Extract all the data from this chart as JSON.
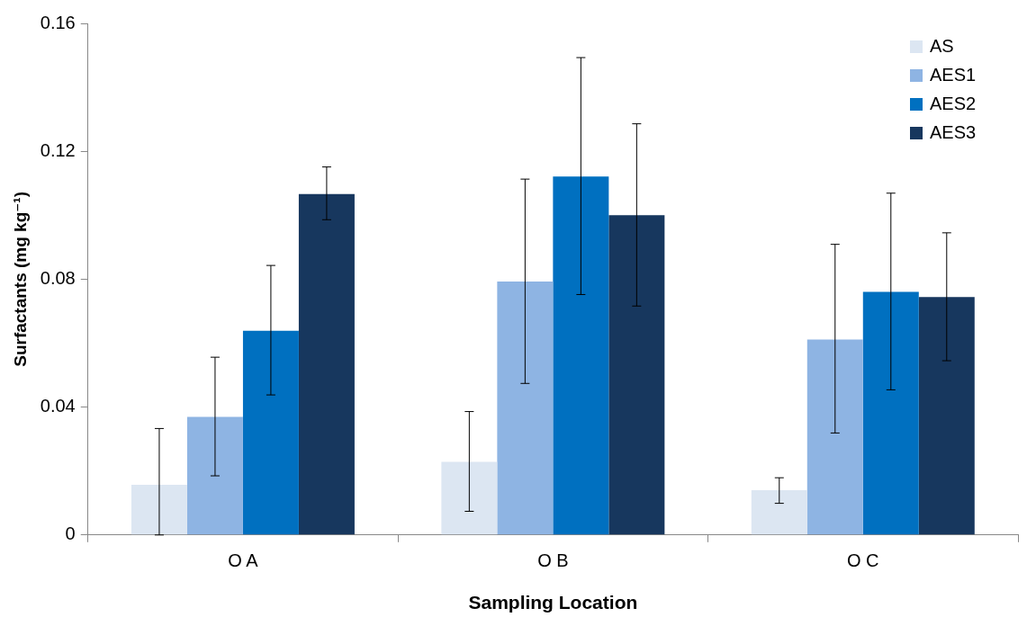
{
  "chart_data": {
    "type": "bar",
    "xlabel": "Sampling Location",
    "ylabel": "Surfactants (mg kg⁻¹)",
    "categories": [
      "O A",
      "O B",
      "O C"
    ],
    "series": [
      {
        "name": "AS",
        "color": "#dce6f2",
        "values": [
          0.0157,
          0.0229,
          0.014
        ],
        "errors": [
          [
            0,
            0.0333
          ],
          [
            0.0074,
            0.0386
          ],
          [
            0.0099,
            0.0179
          ]
        ]
      },
      {
        "name": "AES1",
        "color": "#8eb4e3",
        "values": [
          0.0369,
          0.0793,
          0.0611
        ],
        "errors": [
          [
            0.0185,
            0.0556
          ],
          [
            0.0474,
            0.1113
          ],
          [
            0.0319,
            0.0909
          ]
        ]
      },
      {
        "name": "AES2",
        "color": "#0070c0",
        "values": [
          0.0639,
          0.1121,
          0.076
        ],
        "errors": [
          [
            0.0438,
            0.0843
          ],
          [
            0.0752,
            0.1493
          ],
          [
            0.0454,
            0.1069
          ]
        ]
      },
      {
        "name": "AES3",
        "color": "#17375e",
        "values": [
          0.1066,
          0.1,
          0.0744
        ],
        "errors": [
          [
            0.0986,
            0.1151
          ],
          [
            0.0716,
            0.1286
          ],
          [
            0.0545,
            0.0945
          ]
        ]
      }
    ],
    "ylim": [
      0,
      0.16
    ],
    "yticks": [
      0,
      0.04,
      0.08,
      0.12,
      0.16
    ],
    "grid": false,
    "legend": "top right"
  }
}
